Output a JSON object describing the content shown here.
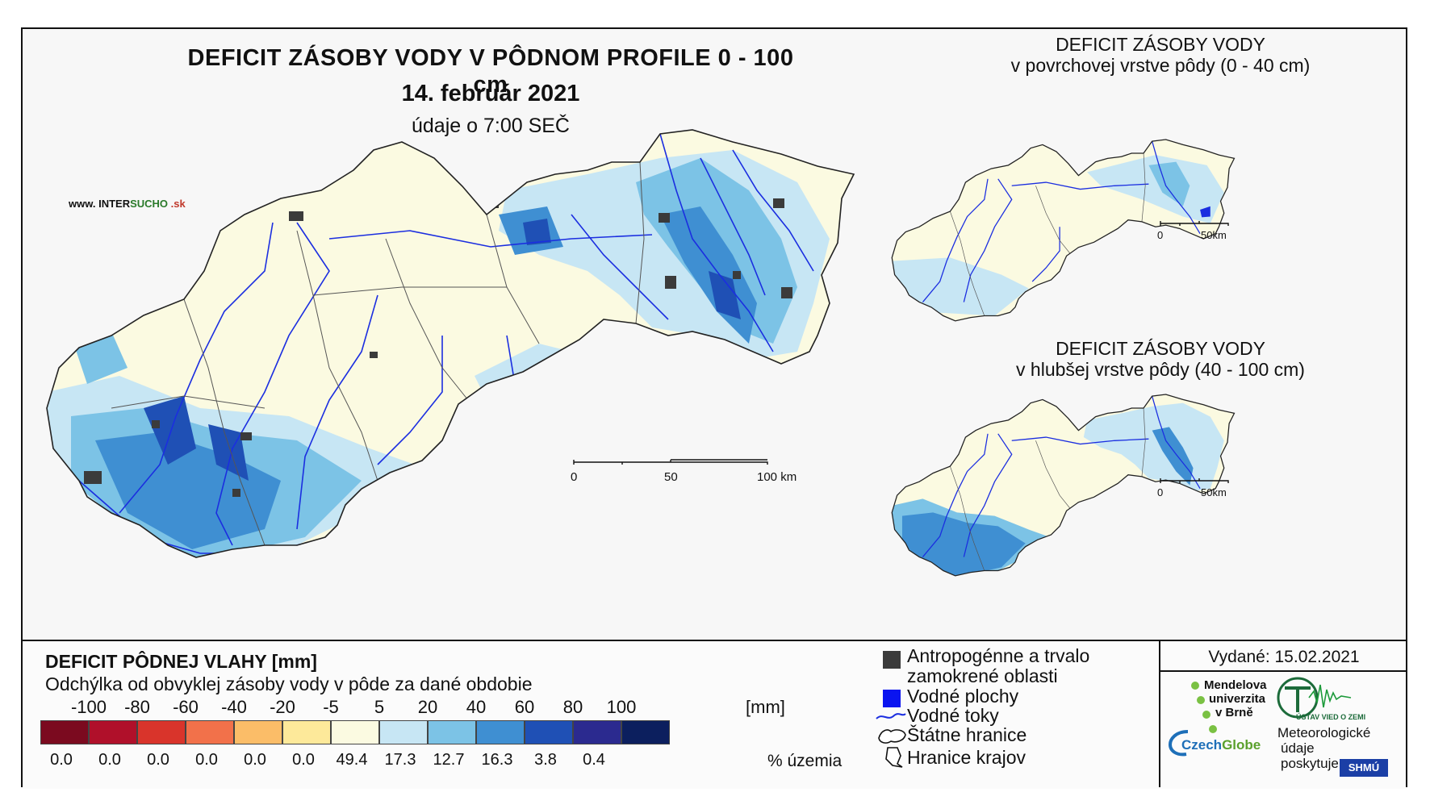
{
  "map": {
    "title": "DEFICIT ZÁSOBY VODY V PÔDNOM PROFILE 0 - 100 cm",
    "date": "14. február 2021",
    "time": "údaje o 7:00 SEČ",
    "website_prefix": "www. INTER",
    "website_accent": "SUCHO",
    "website_suffix": " .sk",
    "scale_main": [
      "0",
      "50",
      "100 km"
    ],
    "sub_maps": [
      {
        "title_line1": "DEFICIT ZÁSOBY VODY",
        "title_line2": "v povrchovej vrstve pôdy (0 - 40 cm)",
        "scale": [
          "0",
          "50km"
        ]
      },
      {
        "title_line1": "DEFICIT ZÁSOBY VODY",
        "title_line2": "v hlubšej vrstve pôdy (40 - 100 cm)",
        "scale": [
          "0",
          "50km"
        ]
      }
    ]
  },
  "legend": {
    "title": "DEFICIT PÔDNEJ VLAHY [mm]",
    "subtitle": "Odchýlka od obvyklej zásoby vody v pôde za dané obdobie",
    "unit": "[mm]",
    "percent_unit": "% územia",
    "ticks": [
      "-100",
      "-80",
      "-60",
      "-40",
      "-20",
      "-5",
      "5",
      "20",
      "40",
      "60",
      "80",
      "100"
    ],
    "classes": [
      {
        "color": "#7b0a1f",
        "percent": "0.0"
      },
      {
        "color": "#b0102a",
        "percent": "0.0"
      },
      {
        "color": "#d9342b",
        "percent": "0.0"
      },
      {
        "color": "#f2714a",
        "percent": "0.0"
      },
      {
        "color": "#fbbd68",
        "percent": "0.0"
      },
      {
        "color": "#fde99a",
        "percent": "0.0"
      },
      {
        "color": "#fbfae1",
        "percent": "49.4"
      },
      {
        "color": "#c7e6f4",
        "percent": "17.3"
      },
      {
        "color": "#7cc3e6",
        "percent": "12.7"
      },
      {
        "color": "#3f8fd2",
        "percent": "16.3"
      },
      {
        "color": "#1f50b5",
        "percent": "3.8"
      },
      {
        "color": "#2b2a8f",
        "percent": "0.4"
      },
      {
        "color": "#0c1f5e",
        "percent": ""
      }
    ],
    "symbols": {
      "anthropogenic_line1": "Antropogénne a trvalo",
      "anthropogenic_line2": "zamokrené oblasti",
      "water_bodies": "Vodné plochy",
      "streams": "Vodné toky",
      "state_border": "Štátne hranice",
      "region_border": "Hranice krajov"
    },
    "issued": "Vydané: 15.02.2021",
    "logos": {
      "mendelu": [
        "Mendelova",
        "univerzita",
        "v Brně"
      ],
      "czechglobe_a": "Czech",
      "czechglobe_b": "Globe",
      "ustav": "ÚSTAV VIED O ZEMI",
      "meteo": [
        "Meteorologické",
        "údaje",
        "poskytuje:"
      ],
      "shmu": "SHMÚ"
    }
  }
}
